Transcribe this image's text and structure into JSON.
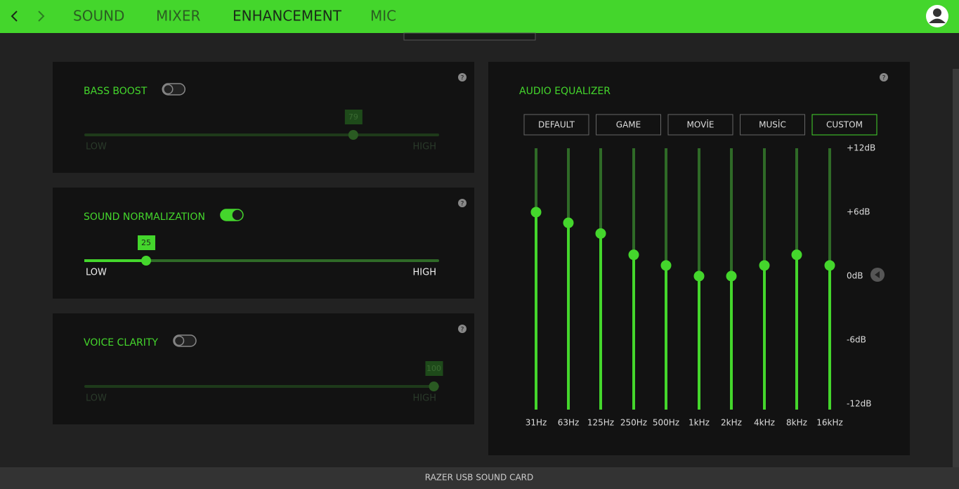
{
  "nav": {
    "tabs": [
      "SOUND",
      "MIXER",
      "ENHANCEMENT",
      "MIC"
    ],
    "active": 2
  },
  "panels": [
    {
      "title": "BASS BOOST",
      "enabled": false,
      "value": 79,
      "low": "LOW",
      "high": "HIGH"
    },
    {
      "title": "SOUND NORMALIZATION",
      "enabled": true,
      "value": 25,
      "low": "LOW",
      "high": "HIGH"
    },
    {
      "title": "VOICE CLARITY",
      "enabled": false,
      "value": 100,
      "low": "LOW",
      "high": "HIGH"
    }
  ],
  "equalizer": {
    "title": "AUDIO EQUALIZER",
    "presets": [
      "DEFAULT",
      "GAME",
      "MOVİE",
      "MUSİC",
      "CUSTOM"
    ],
    "active_preset": 4,
    "scale": [
      {
        "value": 12,
        "label": "+12dB"
      },
      {
        "value": 6,
        "label": "+6dB"
      },
      {
        "value": 0,
        "label": "0dB"
      },
      {
        "value": -6,
        "label": "-6dB"
      },
      {
        "value": -12,
        "label": "-12dB"
      }
    ],
    "bands": [
      "31Hz",
      "63Hz",
      "125Hz",
      "250Hz",
      "500Hz",
      "1kHz",
      "2kHz",
      "4kHz",
      "8kHz",
      "16kHz"
    ],
    "values": [
      6,
      5,
      4,
      2,
      1,
      0,
      0,
      1,
      2,
      1
    ]
  },
  "footer": "RAZER USB SOUND CARD"
}
